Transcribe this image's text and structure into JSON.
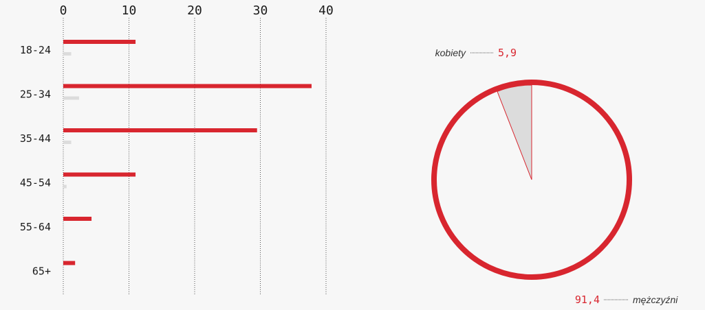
{
  "colors": {
    "red": "#d8262f",
    "grey": "#dcdcdc",
    "background": "#f7f7f7",
    "grid": "#555555"
  },
  "chart_data": [
    {
      "type": "bar",
      "orientation": "horizontal",
      "categories": [
        "18-24",
        "25-34",
        "35-44",
        "45-54",
        "55-64",
        "65+"
      ],
      "series": [
        {
          "color": "#d8262f",
          "values": [
            11,
            37.8,
            29.5,
            11,
            4.3,
            1.8
          ]
        },
        {
          "color": "#dcdcdc",
          "values": [
            1.2,
            2.4,
            1.2,
            0.5,
            0,
            0
          ]
        }
      ],
      "xticks": [
        "0",
        "10",
        "20",
        "30",
        "40"
      ],
      "xlim": [
        0,
        40
      ],
      "grid": "vertical-dotted",
      "xaxis_position": "top"
    },
    {
      "type": "pie",
      "slices": [
        {
          "label": "kobiety",
          "value_label": "5,9",
          "value": 5.9,
          "color": "#dcdcdc"
        },
        {
          "label": "mężczyźni",
          "value_label": "91,4",
          "value": 91.4,
          "color": "#f7f7f7"
        }
      ]
    }
  ]
}
